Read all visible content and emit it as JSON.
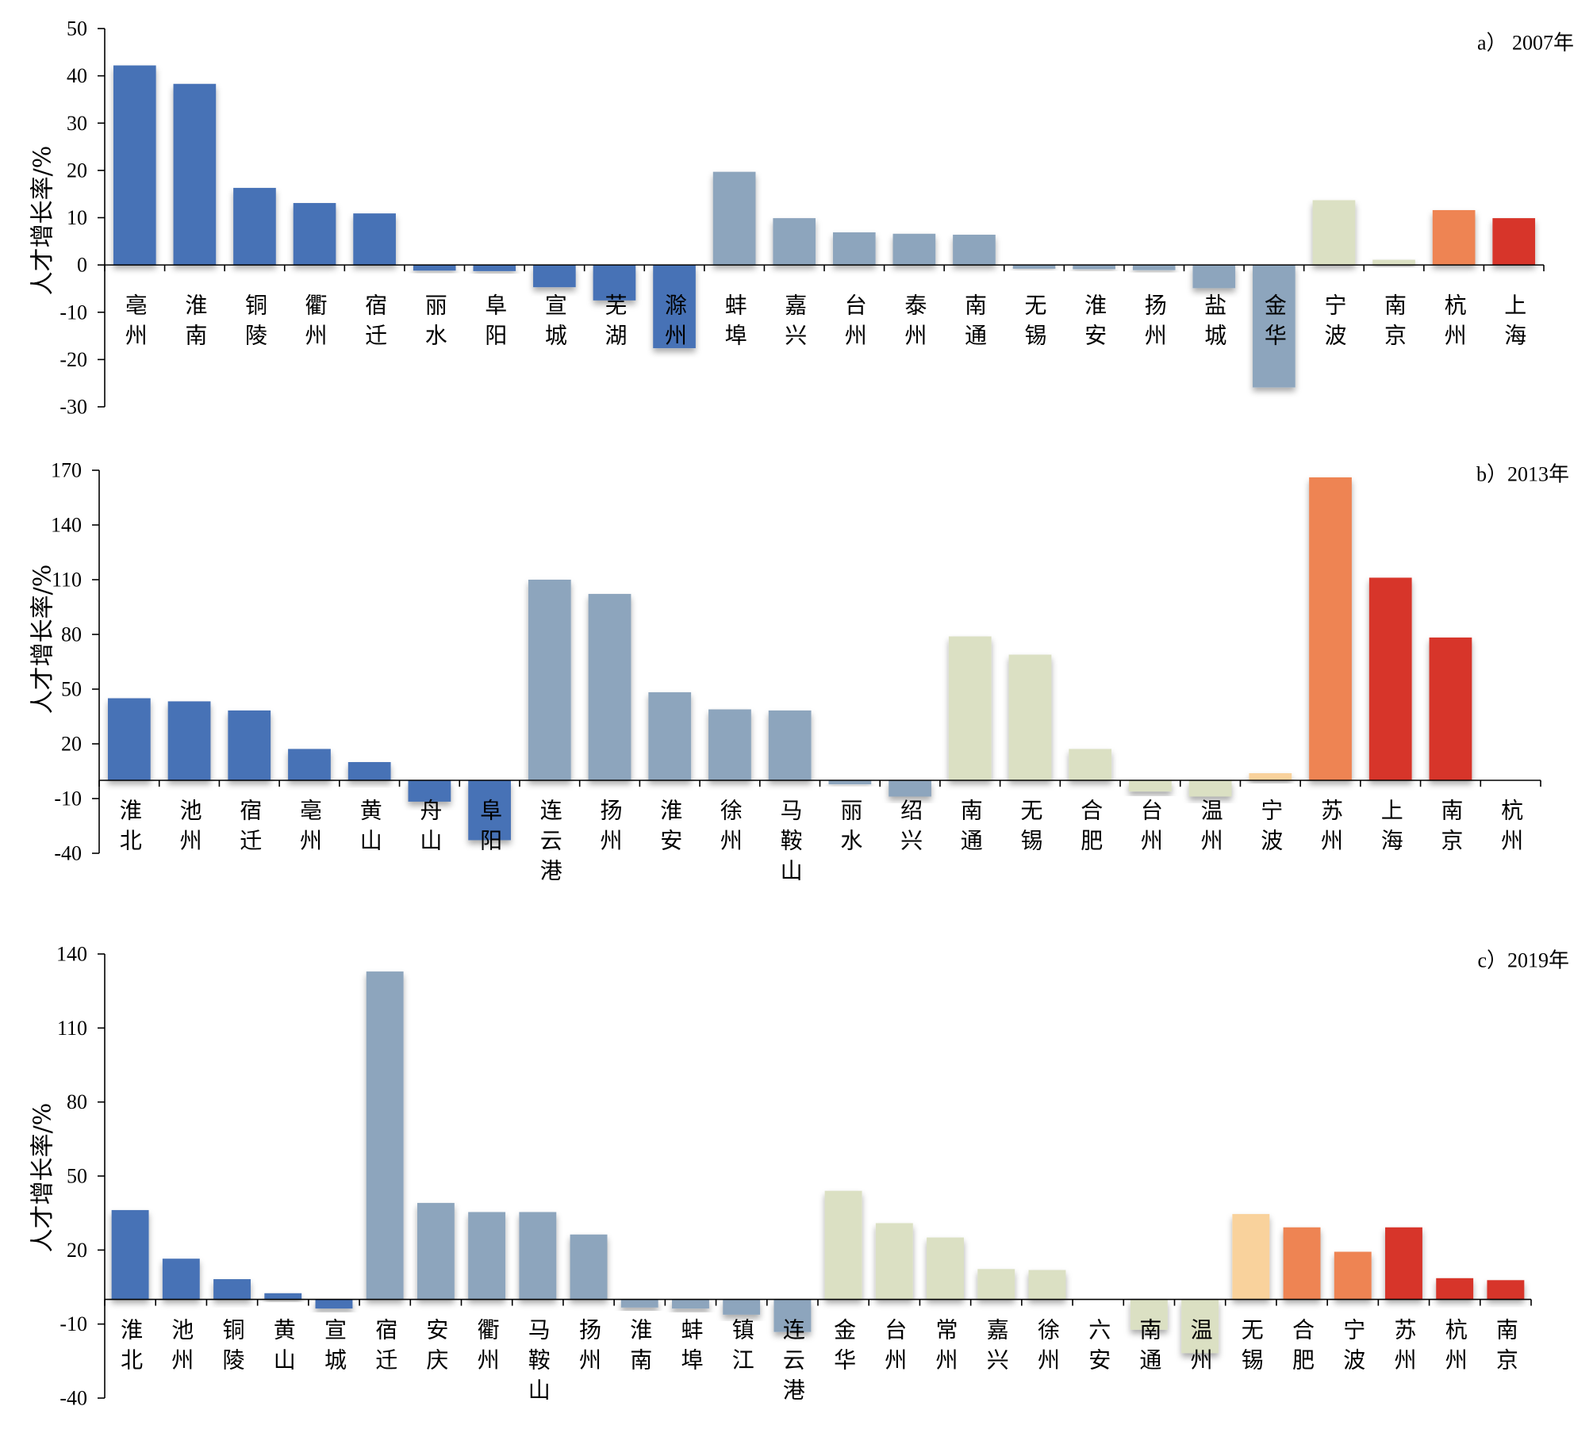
{
  "chart_data": [
    {
      "type": "bar",
      "title": "a） 2007年",
      "ylabel": "人才增长率/%",
      "ylim": [
        -30,
        50
      ],
      "yticks": [
        50,
        40,
        30,
        20,
        10,
        0,
        -10,
        -20,
        -30
      ],
      "grid": false,
      "categories": [
        "亳州",
        "淮南",
        "铜陵",
        "衢州",
        "宿迁",
        "丽水",
        "阜阳",
        "宣城",
        "芜湖",
        "滁州",
        "蚌埠",
        "嘉兴",
        "台州",
        "泰州",
        "南通",
        "无锡",
        "淮安",
        "扬州",
        "盐城",
        "金华",
        "宁波",
        "南京",
        "杭州",
        "上海"
      ],
      "values": [
        42.2,
        38.3,
        16.3,
        13.1,
        10.9,
        -1.2,
        -1.3,
        -4.7,
        -7.5,
        -17.6,
        19.7,
        9.9,
        6.9,
        6.6,
        6.4,
        -0.8,
        -0.9,
        -1.1,
        -4.9,
        -25.9,
        13.7,
        1.1,
        11.6,
        9.9
      ],
      "colors": [
        "#4672b6",
        "#4672b6",
        "#4672b6",
        "#4672b6",
        "#4672b6",
        "#4672b6",
        "#4672b6",
        "#4672b6",
        "#4672b6",
        "#4672b6",
        "#8da5bd",
        "#8da5bd",
        "#8da5bd",
        "#8da5bd",
        "#8da5bd",
        "#8da5bd",
        "#8da5bd",
        "#8da5bd",
        "#8da5bd",
        "#8da5bd",
        "#dbe0c3",
        "#dbe0c3",
        "#ee8453",
        "#d7352b"
      ]
    },
    {
      "type": "bar",
      "title": "b）2013年",
      "ylabel": "人才增长率/%",
      "ylim": [
        -40,
        170
      ],
      "yticks": [
        170,
        140,
        110,
        80,
        50,
        20,
        -10,
        -40
      ],
      "grid": false,
      "categories": [
        "淮北",
        "池州",
        "宿迁",
        "亳州",
        "黄山",
        "舟山",
        "阜阳",
        "连云港",
        "扬州",
        "淮安",
        "徐州",
        "马鞍山",
        "丽水",
        "绍兴",
        "南通",
        "无锡",
        "合肥",
        "台州",
        "温州",
        "宁波",
        "苏州",
        "上海",
        "南京",
        "杭州"
      ],
      "values": [
        45.0,
        43.3,
        38.3,
        17.2,
        10.0,
        -11.7,
        -32.8,
        110.0,
        102.2,
        48.3,
        38.9,
        38.3,
        -2.2,
        -8.9,
        78.9,
        68.9,
        17.2,
        -6.1,
        -8.9,
        3.9,
        166.1,
        111.1,
        78.3,
        0
      ],
      "colors": [
        "#4672b6",
        "#4672b6",
        "#4672b6",
        "#4672b6",
        "#4672b6",
        "#4672b6",
        "#4672b6",
        "#8da5bd",
        "#8da5bd",
        "#8da5bd",
        "#8da5bd",
        "#8da5bd",
        "#8da5bd",
        "#8da5bd",
        "#dbe0c3",
        "#dbe0c3",
        "#dbe0c3",
        "#dbe0c3",
        "#dbe0c3",
        "#f9d29c",
        "#ee8453",
        "#d7352b",
        "#d7352b",
        "#d7352b"
      ]
    },
    {
      "type": "bar",
      "title": "c）2019年",
      "ylabel": "人才增长率/%",
      "ylim": [
        -40,
        140
      ],
      "yticks": [
        140,
        110,
        80,
        50,
        20,
        -10,
        -40
      ],
      "grid": false,
      "categories": [
        "淮北",
        "池州",
        "铜陵",
        "黄山",
        "宣城",
        "宿迁",
        "安庆",
        "衢州",
        "马鞍山",
        "扬州",
        "淮南",
        "蚌埠",
        "镇江",
        "连云港",
        "金华",
        "台州",
        "常州",
        "嘉兴",
        "徐州",
        "六安",
        "南通",
        "温州",
        "无锡",
        "合肥",
        "宁波",
        "苏州",
        "杭州",
        "南京"
      ],
      "values": [
        36.2,
        16.5,
        8.2,
        2.5,
        -3.7,
        132.9,
        39.1,
        35.4,
        35.4,
        26.3,
        -3.3,
        -3.7,
        -6.2,
        -13.2,
        44.0,
        30.9,
        25.1,
        12.3,
        11.9,
        0,
        -12.3,
        -21.8,
        34.6,
        29.2,
        19.3,
        29.2,
        8.6,
        7.8
      ],
      "colors": [
        "#4672b6",
        "#4672b6",
        "#4672b6",
        "#4672b6",
        "#4672b6",
        "#8da5bd",
        "#8da5bd",
        "#8da5bd",
        "#8da5bd",
        "#8da5bd",
        "#8da5bd",
        "#8da5bd",
        "#8da5bd",
        "#8da5bd",
        "#dbe0c3",
        "#dbe0c3",
        "#dbe0c3",
        "#dbe0c3",
        "#dbe0c3",
        "#dbe0c3",
        "#dbe0c3",
        "#dbe0c3",
        "#f9d29c",
        "#ee8453",
        "#ee8453",
        "#d7352b",
        "#d7352b",
        "#d7352b"
      ]
    }
  ]
}
